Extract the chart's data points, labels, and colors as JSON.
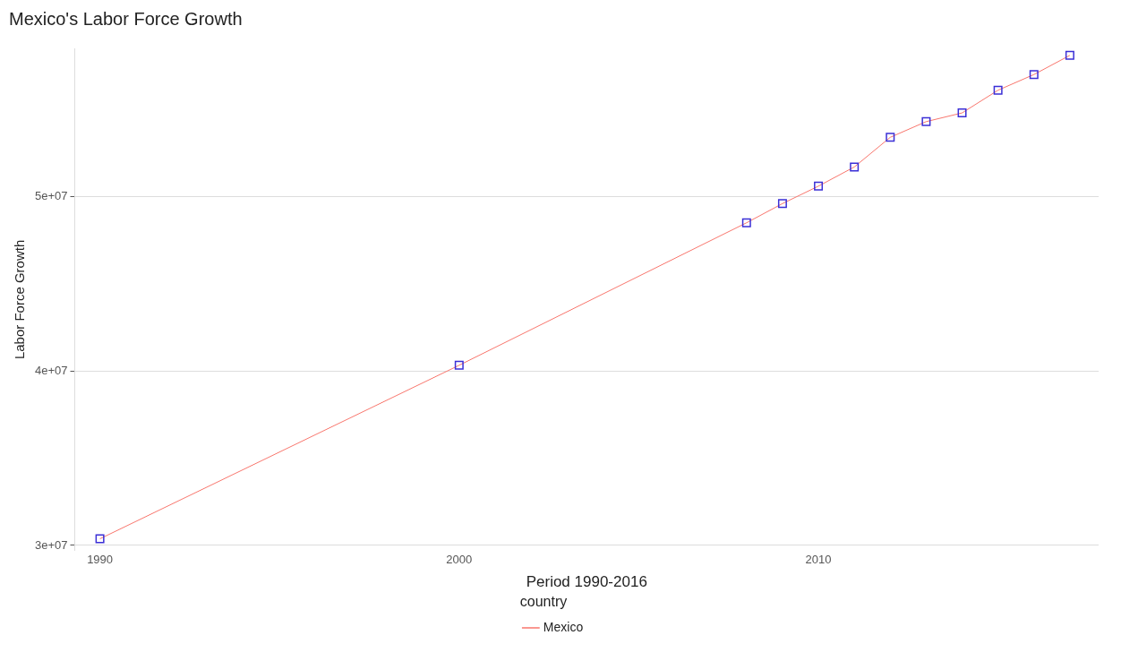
{
  "chart_data": {
    "type": "line",
    "title": "Mexico's Labor Force Growth",
    "xlabel": "Period 1990-2016",
    "ylabel": "Labor Force Growth",
    "legend_title": "country",
    "x": [
      1990,
      2000,
      2008,
      2009,
      2010,
      2011,
      2012,
      2013,
      2014,
      2015,
      2016,
      2017
    ],
    "series": [
      {
        "name": "Mexico",
        "color": "#f8766d",
        "marker": "none",
        "values": [
          30380000,
          40330000,
          48500000,
          49600000,
          50600000,
          51700000,
          53400000,
          54300000,
          54800000,
          56100000,
          57000000,
          58100000
        ]
      },
      {
        "type": "scatter",
        "color": "#3b2fd6",
        "marker": "square",
        "values": [
          30380000,
          40330000,
          48500000,
          49600000,
          50600000,
          51700000,
          53400000,
          54300000,
          54800000,
          56100000,
          57000000,
          58100000
        ]
      }
    ],
    "xlim": [
      1989.3,
      2017.8
    ],
    "xticks": [
      1990,
      2000,
      2010
    ],
    "ylim": [
      29700000,
      58500000
    ],
    "yticks": [
      {
        "value": 30000000,
        "label": "3e+07"
      },
      {
        "value": 40000000,
        "label": "4e+07"
      },
      {
        "value": 50000000,
        "label": "5e+07"
      }
    ],
    "grid": "y",
    "legend": "bottom"
  }
}
